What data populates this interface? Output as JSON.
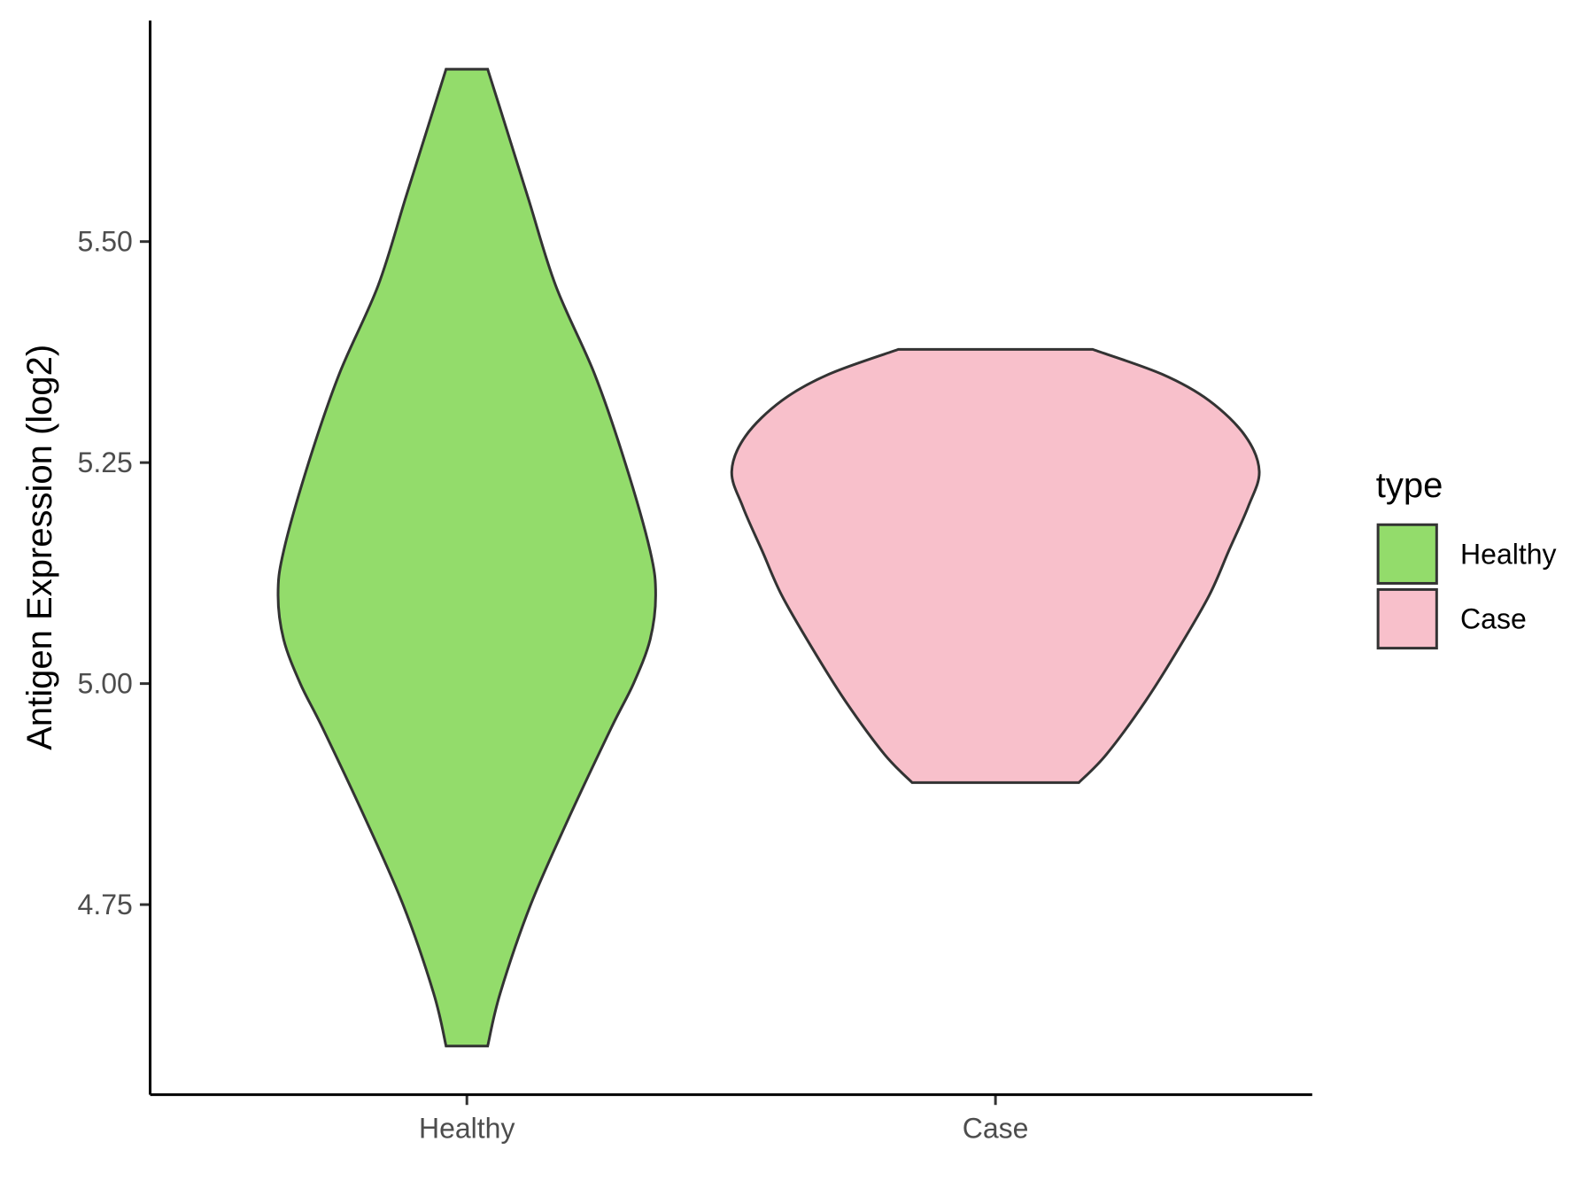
{
  "chart_data": {
    "type": "violin",
    "title": "",
    "xlabel": "",
    "ylabel": "Antigen Expression (log2)",
    "categories": [
      "Healthy",
      "Case"
    ],
    "ylim": [
      4.535,
      5.75
    ],
    "y_ticks": [
      4.75,
      5.0,
      5.25,
      5.5
    ],
    "y_tick_labels": [
      "4.75",
      "5.00",
      "5.25",
      "5.50"
    ],
    "grid": false,
    "legend": {
      "title": "type",
      "placement": "right",
      "entries": [
        {
          "label": "Healthy",
          "color": "#93DC6B"
        },
        {
          "label": "Case",
          "color": "#F8C0CB"
        }
      ]
    },
    "series": [
      {
        "category": "Healthy",
        "color": "#93DC6B",
        "y_min": 4.59,
        "y_max": 5.695,
        "density_profile": [
          [
            4.59,
            0.075
          ],
          [
            4.65,
            0.12
          ],
          [
            4.75,
            0.23
          ],
          [
            4.85,
            0.37
          ],
          [
            4.95,
            0.52
          ],
          [
            5.0,
            0.6
          ],
          [
            5.05,
            0.66
          ],
          [
            5.1,
            0.68
          ],
          [
            5.15,
            0.66
          ],
          [
            5.25,
            0.57
          ],
          [
            5.35,
            0.46
          ],
          [
            5.45,
            0.32
          ],
          [
            5.55,
            0.22
          ],
          [
            5.65,
            0.12
          ],
          [
            5.695,
            0.075
          ]
        ]
      },
      {
        "category": "Case",
        "color": "#F8C0CB",
        "y_min": 4.888,
        "y_max": 5.378,
        "density_profile": [
          [
            4.888,
            0.3
          ],
          [
            4.92,
            0.4
          ],
          [
            4.98,
            0.54
          ],
          [
            5.04,
            0.66
          ],
          [
            5.1,
            0.77
          ],
          [
            5.15,
            0.84
          ],
          [
            5.2,
            0.91
          ],
          [
            5.24,
            0.95
          ],
          [
            5.28,
            0.9
          ],
          [
            5.32,
            0.77
          ],
          [
            5.35,
            0.6
          ],
          [
            5.378,
            0.35
          ]
        ]
      }
    ]
  }
}
